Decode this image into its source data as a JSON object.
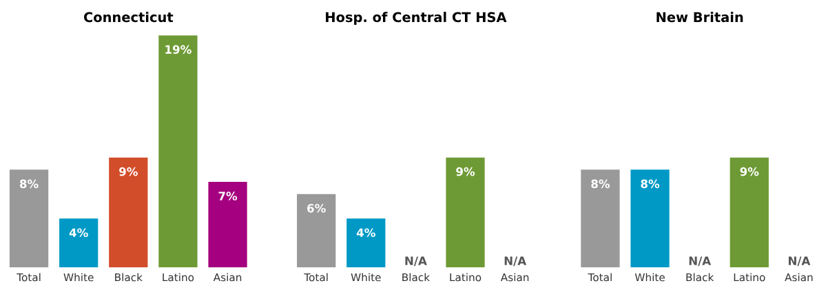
{
  "chart_data": [
    {
      "type": "bar",
      "title": "Connecticut",
      "categories": [
        "Total",
        "White",
        "Black",
        "Latino",
        "Asian"
      ],
      "values": [
        8,
        4,
        9,
        19,
        7
      ],
      "colors": [
        "#999999",
        "#0099c6",
        "#d24d2a",
        "#6e9a35",
        "#a5007f"
      ],
      "value_labels": [
        "8%",
        "4%",
        "9%",
        "19%",
        "7%"
      ],
      "grid": false,
      "legend": false
    },
    {
      "type": "bar",
      "title": "Hosp. of Central CT HSA",
      "categories": [
        "Total",
        "White",
        "Black",
        "Latino",
        "Asian"
      ],
      "values": [
        6,
        4,
        null,
        9,
        null
      ],
      "colors": [
        "#999999",
        "#0099c6",
        "#d24d2a",
        "#6e9a35",
        "#a5007f"
      ],
      "value_labels": [
        "6%",
        "4%",
        "N/A",
        "9%",
        "N/A"
      ],
      "grid": false,
      "legend": false
    },
    {
      "type": "bar",
      "title": "New Britain",
      "categories": [
        "Total",
        "White",
        "Black",
        "Latino",
        "Asian"
      ],
      "values": [
        8,
        8,
        null,
        9,
        null
      ],
      "colors": [
        "#999999",
        "#0099c6",
        "#d24d2a",
        "#6e9a35",
        "#a5007f"
      ],
      "value_labels": [
        "8%",
        "8%",
        "N/A",
        "9%",
        "N/A"
      ],
      "grid": false,
      "legend": false
    }
  ]
}
